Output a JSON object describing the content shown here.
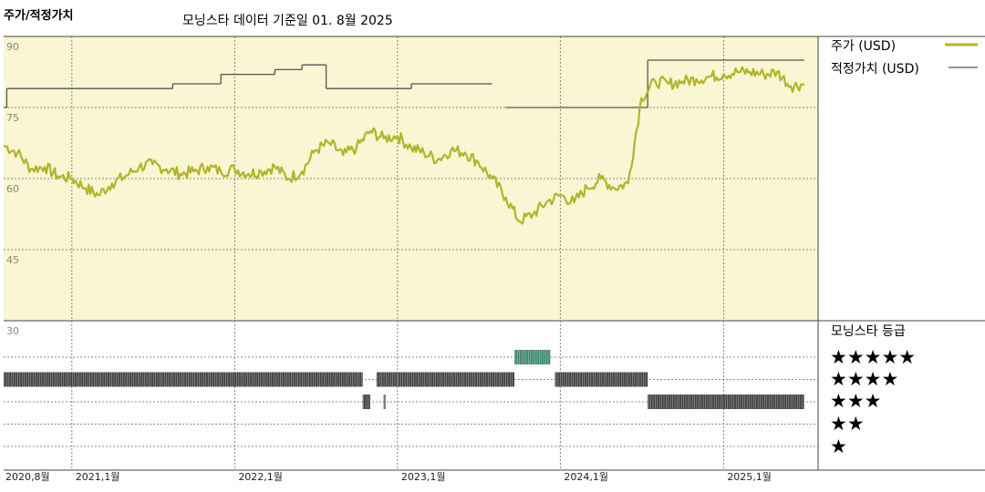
{
  "header": {
    "title": "주가/적정가치",
    "subtitle": "모닝스타 데이터 기준일 01. 8월 2025"
  },
  "legend": {
    "price_label": "주가 (USD)",
    "fair_label": "적정가치 (USD)",
    "rating_title": "모닝스타 등급",
    "stars": [
      "★★★★★",
      "★★★★",
      "★★★",
      "★★",
      "★"
    ]
  },
  "colors": {
    "plot_bg": "#faf5d2",
    "price": "#b2b42b",
    "fair": "#555555",
    "rating_bar": "#2b2b2b",
    "rating_5": "#2a7a60",
    "grid": "#666666"
  },
  "chart_data": {
    "type": "line",
    "yticks": [
      90,
      75,
      60,
      45,
      30
    ],
    "ylim": [
      30,
      90
    ],
    "xlim": [
      "2020-08-01",
      "2025-08-01"
    ],
    "xticks": [
      {
        "label": "2020,8월",
        "date": "2020-08-01"
      },
      {
        "label": "2021,1월",
        "date": "2021-01-01"
      },
      {
        "label": "2022,1월",
        "date": "2022-01-01"
      },
      {
        "label": "2023,1월",
        "date": "2023-01-01"
      },
      {
        "label": "2024,1월",
        "date": "2024-01-01"
      },
      {
        "label": "2025,1월",
        "date": "2025-01-01"
      }
    ],
    "series": [
      {
        "name": "주가 (USD)",
        "points": [
          [
            "2020-08-01",
            67.0
          ],
          [
            "2020-09-01",
            65.5
          ],
          [
            "2020-10-01",
            62.0
          ],
          [
            "2020-11-01",
            62.5
          ],
          [
            "2020-12-01",
            60.5
          ],
          [
            "2021-01-01",
            60.0
          ],
          [
            "2021-02-01",
            58.0
          ],
          [
            "2021-03-01",
            56.5
          ],
          [
            "2021-04-01",
            59.0
          ],
          [
            "2021-05-01",
            60.5
          ],
          [
            "2021-06-01",
            62.5
          ],
          [
            "2021-07-01",
            63.0
          ],
          [
            "2021-08-01",
            62.0
          ],
          [
            "2021-09-01",
            61.0
          ],
          [
            "2021-10-01",
            61.5
          ],
          [
            "2021-11-01",
            62.5
          ],
          [
            "2021-12-01",
            61.5
          ],
          [
            "2022-01-01",
            62.0
          ],
          [
            "2022-02-01",
            61.0
          ],
          [
            "2022-03-01",
            61.5
          ],
          [
            "2022-04-01",
            62.5
          ],
          [
            "2022-05-01",
            60.0
          ],
          [
            "2022-06-01",
            61.5
          ],
          [
            "2022-07-01",
            66.0
          ],
          [
            "2022-08-01",
            67.5
          ],
          [
            "2022-09-01",
            65.0
          ],
          [
            "2022-10-01",
            66.5
          ],
          [
            "2022-11-01",
            70.0
          ],
          [
            "2022-12-01",
            68.5
          ],
          [
            "2023-01-01",
            69.0
          ],
          [
            "2023-02-01",
            66.5
          ],
          [
            "2023-03-01",
            65.5
          ],
          [
            "2023-04-01",
            64.0
          ],
          [
            "2023-05-01",
            66.0
          ],
          [
            "2023-06-01",
            65.5
          ],
          [
            "2023-07-01",
            63.5
          ],
          [
            "2023-08-01",
            60.0
          ],
          [
            "2023-09-01",
            56.0
          ],
          [
            "2023-10-01",
            51.0
          ],
          [
            "2023-11-01",
            52.5
          ],
          [
            "2023-12-01",
            55.0
          ],
          [
            "2024-01-01",
            56.5
          ],
          [
            "2024-02-01",
            55.0
          ],
          [
            "2024-03-01",
            58.0
          ],
          [
            "2024-04-01",
            60.0
          ],
          [
            "2024-05-01",
            58.0
          ],
          [
            "2024-06-01",
            59.0
          ],
          [
            "2024-07-01",
            77.0
          ],
          [
            "2024-08-01",
            80.5
          ],
          [
            "2024-09-01",
            80.0
          ],
          [
            "2024-10-01",
            80.5
          ],
          [
            "2024-11-01",
            81.0
          ],
          [
            "2024-12-01",
            81.5
          ],
          [
            "2025-01-01",
            82.0
          ],
          [
            "2025-02-01",
            82.5
          ],
          [
            "2025-03-01",
            82.5
          ],
          [
            "2025-04-01",
            82.0
          ],
          [
            "2025-05-01",
            82.5
          ],
          [
            "2025-06-01",
            79.5
          ],
          [
            "2025-07-01",
            80.0
          ]
        ]
      },
      {
        "name": "적정가치 (USD)",
        "steps": [
          [
            "2020-08-01",
            75.0
          ],
          [
            "2020-08-08",
            79.0
          ],
          [
            "2021-08-15",
            80.0
          ],
          [
            "2021-12-01",
            82.0
          ],
          [
            "2022-04-01",
            83.0
          ],
          [
            "2022-06-01",
            84.0
          ],
          [
            "2022-07-25",
            79.0
          ],
          [
            "2023-02-01",
            80.0
          ],
          [
            "2023-08-01",
            null
          ],
          [
            "2023-09-01",
            75.0
          ],
          [
            "2024-07-15",
            85.0
          ],
          [
            "2025-07-01",
            85.0
          ]
        ]
      }
    ],
    "ratings": [
      {
        "start": "2020-08-01",
        "end": "2022-10-15",
        "stars": 4
      },
      {
        "start": "2022-10-15",
        "end": "2022-11-01",
        "stars": 3
      },
      {
        "start": "2022-11-15",
        "end": "2023-01-01",
        "stars": 4
      },
      {
        "start": "2022-12-01",
        "end": "2022-12-05",
        "stars": 3
      },
      {
        "start": "2023-01-01",
        "end": "2023-09-20",
        "stars": 4
      },
      {
        "start": "2023-09-20",
        "end": "2023-12-10",
        "stars": 5
      },
      {
        "start": "2023-12-20",
        "end": "2024-07-15",
        "stars": 4
      },
      {
        "start": "2024-07-15",
        "end": "2025-07-01",
        "stars": 3
      }
    ]
  }
}
